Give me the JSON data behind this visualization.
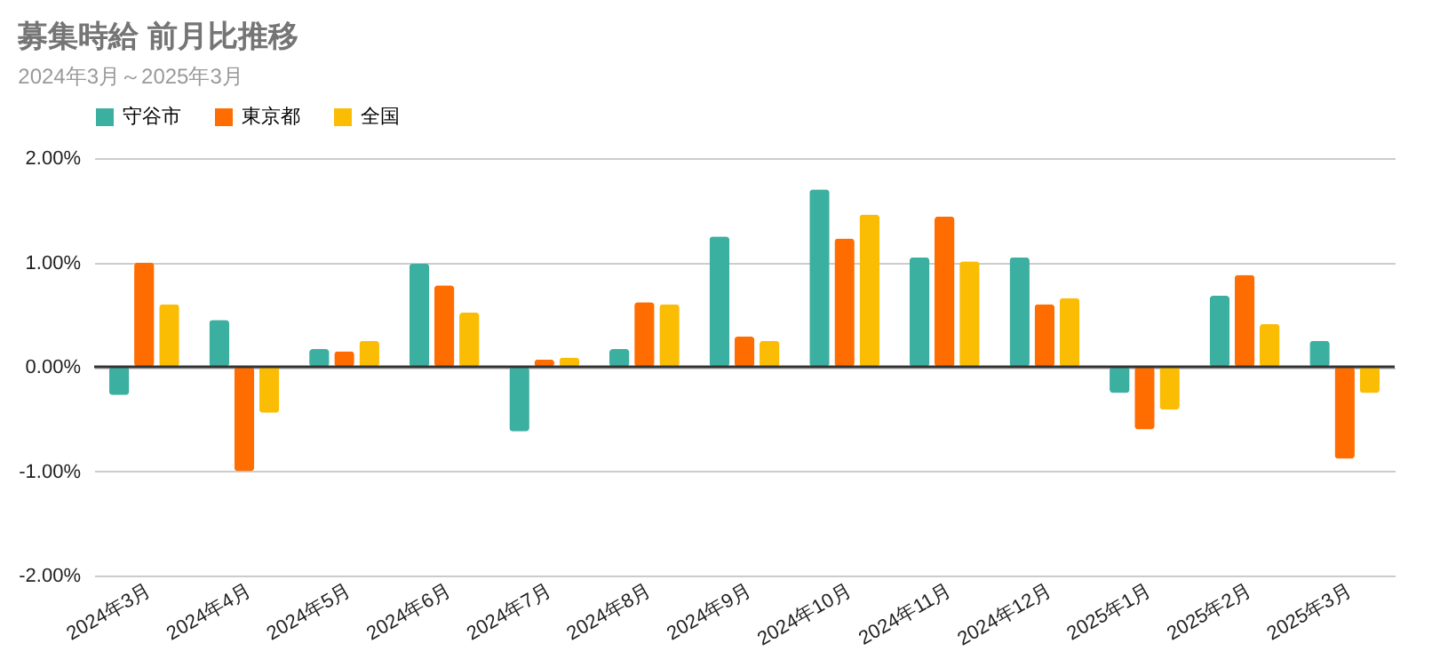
{
  "chart_data": {
    "type": "bar",
    "title": "募集時給 前月比推移",
    "subtitle": "2024年3月～2025年3月",
    "categories": [
      "2024年3月",
      "2024年4月",
      "2024年5月",
      "2024年6月",
      "2024年7月",
      "2024年8月",
      "2024年9月",
      "2024年10月",
      "2024年11月",
      "2024年12月",
      "2025年1月",
      "2025年2月",
      "2025年3月"
    ],
    "series": [
      {
        "name": "守谷市",
        "color": "#3bb0a0",
        "values": [
          -0.27,
          0.45,
          0.17,
          0.99,
          -0.62,
          0.17,
          1.25,
          1.7,
          1.05,
          1.05,
          -0.25,
          0.68,
          0.25
        ]
      },
      {
        "name": "東京都",
        "color": "#ff6d01",
        "values": [
          1.0,
          -1.0,
          0.15,
          0.78,
          0.07,
          0.62,
          0.29,
          1.23,
          1.44,
          0.6,
          -0.6,
          0.88,
          -0.88
        ]
      },
      {
        "name": "全国",
        "color": "#fbbc04",
        "values": [
          0.6,
          -0.44,
          0.25,
          0.52,
          0.09,
          0.6,
          0.25,
          1.46,
          1.01,
          0.66,
          -0.41,
          0.41,
          -0.25
        ]
      }
    ],
    "ylim": [
      -2,
      2
    ],
    "yticks": [
      {
        "value": -2,
        "label": "-2.00%"
      },
      {
        "value": -1,
        "label": "-1.00%"
      },
      {
        "value": 0,
        "label": "0.00%"
      },
      {
        "value": 1,
        "label": "1.00%"
      },
      {
        "value": 2,
        "label": "2.00%"
      }
    ],
    "grid": "y",
    "legend": "top"
  }
}
